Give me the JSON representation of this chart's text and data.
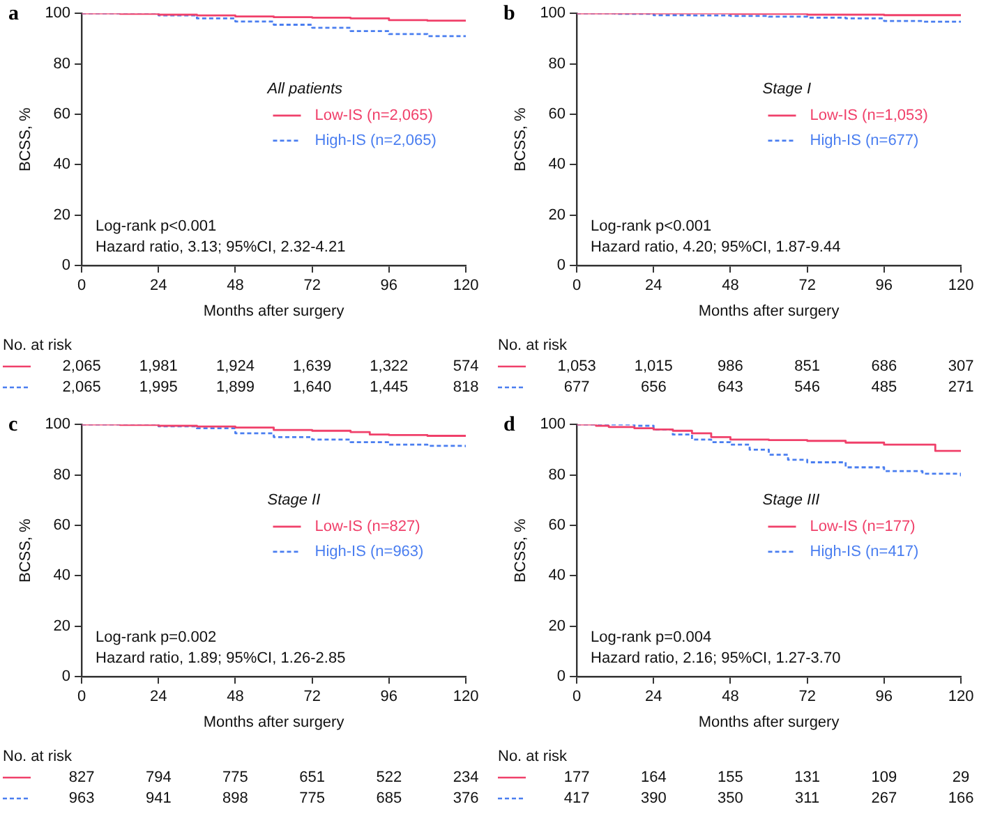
{
  "chart_data": [
    {
      "type": "step",
      "title": "a",
      "legend_title": "All patients",
      "legend": "right",
      "xlabel": "Months after surgery",
      "ylabel": "BCSS, %",
      "xlim": [
        0,
        120
      ],
      "xticks": [
        0,
        24,
        48,
        72,
        96,
        120
      ],
      "ylim": [
        0,
        100
      ],
      "yticks": [
        0,
        20,
        40,
        60,
        80,
        100
      ],
      "series": [
        {
          "name": "Low-IS (n=2,065)",
          "color": "#f0406a",
          "line_style": "solid",
          "x": [
            0,
            12,
            24,
            36,
            48,
            60,
            72,
            84,
            96,
            108,
            120
          ],
          "values": [
            100,
            99.8,
            99.5,
            99.2,
            98.8,
            98.5,
            98.3,
            98,
            97.3,
            97.1,
            96.8
          ]
        },
        {
          "name": "High-IS (n=2,065)",
          "color": "#4a7ef0",
          "line_style": "dashed",
          "x": [
            0,
            24,
            36,
            48,
            60,
            72,
            84,
            96,
            108,
            120
          ],
          "values": [
            100,
            99.2,
            98,
            96.8,
            95.5,
            94.3,
            93,
            91.8,
            91,
            90.6
          ]
        }
      ],
      "annotations": [
        "Log-rank p<0.001",
        "Hazard ratio, 3.13; 95%CI, 2.32-4.21",
        "No. at risk",
        "2,065",
        "1,981",
        "1,924",
        "1,639",
        "1,322",
        "574",
        "2,065",
        "1,995",
        "1,899",
        "1,640",
        "1,445",
        "818"
      ]
    },
    {
      "type": "step",
      "title": "b",
      "legend_title": "Stage I",
      "legend": "right",
      "xlabel": "Months after surgery",
      "ylabel": "BCSS, %",
      "xlim": [
        0,
        120
      ],
      "xticks": [
        0,
        24,
        48,
        72,
        96,
        120
      ],
      "ylim": [
        0,
        100
      ],
      "yticks": [
        0,
        20,
        40,
        60,
        80,
        100
      ],
      "series": [
        {
          "name": "Low-IS (n=1,053)",
          "color": "#f0406a",
          "line_style": "solid",
          "x": [
            0,
            24,
            48,
            72,
            96,
            120
          ],
          "values": [
            100,
            100,
            99.8,
            99.5,
            99.3,
            99.2
          ]
        },
        {
          "name": "High-IS (n=677)",
          "color": "#4a7ef0",
          "line_style": "dashed",
          "x": [
            0,
            12,
            24,
            36,
            48,
            60,
            72,
            84,
            96,
            108,
            120
          ],
          "values": [
            100,
            99.8,
            99.3,
            99.2,
            99,
            98.7,
            98.3,
            98,
            97,
            96.7,
            96.5
          ]
        }
      ],
      "annotations": [
        "Log-rank p<0.001",
        "Hazard ratio, 4.20; 95%CI, 1.87-9.44",
        "No. at risk",
        "1,053",
        "1,015",
        "986",
        "851",
        "686",
        "307",
        "677",
        "656",
        "643",
        "546",
        "485",
        "271"
      ]
    },
    {
      "type": "step",
      "title": "c",
      "legend_title": "Stage II",
      "legend": "right",
      "xlabel": "Months after surgery",
      "ylabel": "BCSS, %",
      "xlim": [
        0,
        120
      ],
      "xticks": [
        0,
        24,
        48,
        72,
        96,
        120
      ],
      "ylim": [
        0,
        100
      ],
      "yticks": [
        0,
        20,
        40,
        60,
        80,
        100
      ],
      "series": [
        {
          "name": "Low-IS (n=827)",
          "color": "#f0406a",
          "line_style": "solid",
          "x": [
            0,
            12,
            24,
            36,
            48,
            60,
            72,
            84,
            90,
            96,
            108,
            120
          ],
          "values": [
            100,
            99.8,
            99.5,
            99.2,
            98.8,
            97.8,
            97.5,
            97,
            96,
            95.8,
            95.5,
            95.2
          ]
        },
        {
          "name": "High-IS (n=963)",
          "color": "#4a7ef0",
          "line_style": "dashed",
          "x": [
            0,
            24,
            36,
            48,
            60,
            72,
            84,
            96,
            108,
            120
          ],
          "values": [
            100,
            99.3,
            98.5,
            96.5,
            95,
            94,
            93,
            92,
            91.5,
            91
          ]
        }
      ],
      "annotations": [
        "Log-rank p=0.002",
        "Hazard ratio, 1.89; 95%CI, 1.26-2.85",
        "No. at risk",
        "827",
        "794",
        "775",
        "651",
        "522",
        "234",
        "963",
        "941",
        "898",
        "775",
        "685",
        "376"
      ]
    },
    {
      "type": "step",
      "title": "d",
      "legend_title": "Stage III",
      "legend": "right",
      "xlabel": "Months after surgery",
      "ylabel": "BCSS, %",
      "xlim": [
        0,
        120
      ],
      "xticks": [
        0,
        24,
        48,
        72,
        96,
        120
      ],
      "ylim": [
        0,
        100
      ],
      "yticks": [
        0,
        20,
        40,
        60,
        80,
        100
      ],
      "series": [
        {
          "name": "Low-IS (n=177)",
          "color": "#f0406a",
          "line_style": "solid",
          "x": [
            0,
            6,
            10,
            18,
            24,
            30,
            36,
            42,
            48,
            60,
            72,
            84,
            96,
            108,
            112,
            120
          ],
          "values": [
            100,
            99.5,
            99,
            98.5,
            98,
            97.5,
            96.5,
            95,
            94,
            93.8,
            93.5,
            92.8,
            92,
            92,
            89.5,
            89.5
          ]
        },
        {
          "name": "High-IS (n=417)",
          "color": "#4a7ef0",
          "line_style": "dashed",
          "x": [
            0,
            12,
            18,
            24,
            30,
            36,
            42,
            48,
            54,
            60,
            66,
            72,
            84,
            96,
            108,
            120
          ],
          "values": [
            100,
            100,
            99.5,
            98,
            96,
            94,
            93,
            92,
            90,
            88,
            86,
            85,
            83,
            81.5,
            80.5,
            79.5
          ]
        }
      ],
      "annotations": [
        "Log-rank p=0.004",
        "Hazard ratio, 2.16; 95%CI, 1.27-3.70",
        "No. at risk",
        "177",
        "164",
        "155",
        "131",
        "109",
        "29",
        "417",
        "390",
        "350",
        "311",
        "267",
        "166"
      ]
    }
  ]
}
